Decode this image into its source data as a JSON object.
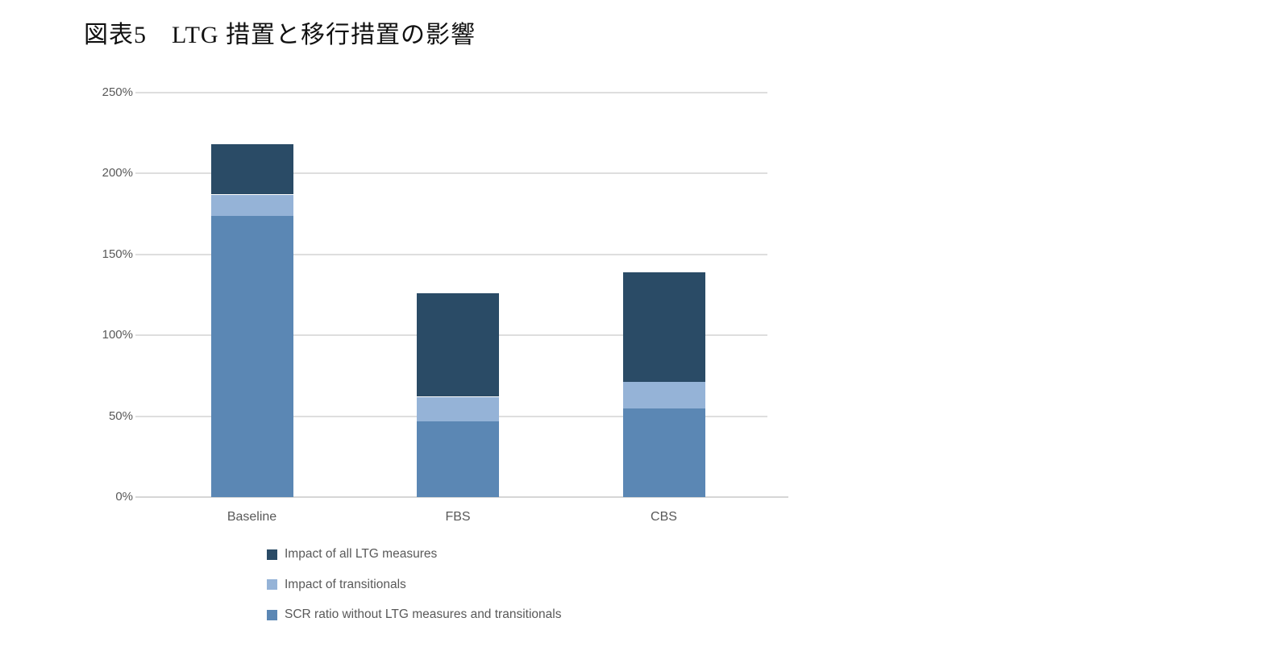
{
  "title": "図表5　LTG 措置と移行措置の影響",
  "colors": {
    "background": "#FFFFFF",
    "title_text": "#111111",
    "axis_text": "#595959",
    "gridline": "#DEDEDE",
    "series_dark": "#2A4B66",
    "series_light": "#95B3D7",
    "series_medium": "#5B87B4"
  },
  "chart_data": {
    "type": "bar",
    "stacked": true,
    "title": "",
    "xlabel": "",
    "ylabel": "",
    "categories": [
      "Baseline",
      "FBS",
      "CBS"
    ],
    "series": [
      {
        "name": "SCR ratio without LTG measures and transitionals",
        "color": "#5B87B4",
        "values": [
          174,
          47,
          55
        ]
      },
      {
        "name": "Impact of transitionals",
        "color": "#95B3D7",
        "values": [
          13,
          15,
          16
        ]
      },
      {
        "name": "Impact of all LTG measures",
        "color": "#2A4B66",
        "values": [
          31,
          64,
          68
        ]
      }
    ],
    "totals": [
      218,
      126,
      139
    ],
    "ylim": [
      0,
      250
    ],
    "y_ticks": [
      {
        "label": "250%",
        "value": 250
      },
      {
        "label": "200%",
        "value": 200
      },
      {
        "label": "150%",
        "value": 150
      },
      {
        "label": "100%",
        "value": 100
      },
      {
        "label": "50%",
        "value": 50
      },
      {
        "label": "0%",
        "value": 0
      }
    ],
    "grid": true,
    "legend_position": "bottom-left",
    "legend": [
      {
        "label": "Impact of all LTG measures",
        "color": "#2A4B66"
      },
      {
        "label": "Impact of transitionals",
        "color": "#95B3D7"
      },
      {
        "label": "SCR ratio without LTG measures and transitionals",
        "color": "#5B87B4"
      }
    ]
  }
}
